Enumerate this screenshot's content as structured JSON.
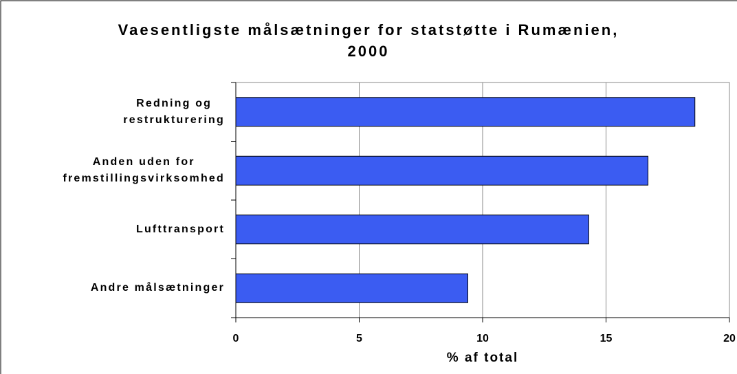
{
  "chart_data": {
    "type": "barh",
    "title": "Vaesentligste målsætninger for statstøtte i Rumænien,\n2000",
    "xlabel": "% af total",
    "categories": [
      "Redning og\nrestrukturering",
      "Anden uden for\nfremstillingsvirksomhed",
      "Lufttransport",
      "Andre målsætninger"
    ],
    "values": [
      18.6,
      16.7,
      14.3,
      9.4
    ],
    "color": "#3b5cf2",
    "xlim": [
      0,
      20
    ],
    "xticks": [
      0,
      5,
      10,
      15,
      20
    ],
    "grid": true
  }
}
